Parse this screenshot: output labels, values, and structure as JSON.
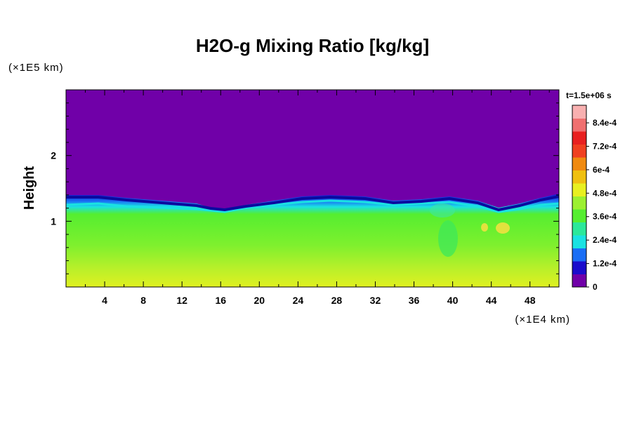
{
  "chart_data": {
    "type": "heatmap",
    "title": "H2O-g Mixing Ratio [kg/kg]",
    "xlabel": "",
    "ylabel": "Height",
    "x_unit_label": "(×1E4 km)",
    "y_unit_label": "(×1E5 km)",
    "time_label": "t=1.5e+06 s",
    "xlim": [
      0,
      51
    ],
    "ylim": [
      0,
      3
    ],
    "x_ticks": [
      4,
      8,
      12,
      16,
      20,
      24,
      28,
      32,
      36,
      40,
      44,
      48
    ],
    "y_ticks": [
      1,
      2
    ],
    "colorbar": {
      "min": 0,
      "max": 0.00093,
      "tick_values": [
        0,
        0.00012,
        0.00024,
        0.00036,
        0.00048,
        0.0006,
        0.00072,
        0.00084
      ],
      "tick_labels": [
        "0",
        "1.2e-4",
        "2.4e-4",
        "3.6e-4",
        "4.8e-4",
        "6e-4",
        "7.2e-4",
        "8.4e-4"
      ],
      "colors": [
        "#7000a8",
        "#1a0ccc",
        "#1a6ef5",
        "#1ae2e2",
        "#2ce89a",
        "#55ee30",
        "#9cf030",
        "#e8f020",
        "#f0c010",
        "#f08a10",
        "#f04020",
        "#e82020",
        "#f07070",
        "#f8b0b0"
      ]
    },
    "grid": false,
    "legend": "none"
  }
}
